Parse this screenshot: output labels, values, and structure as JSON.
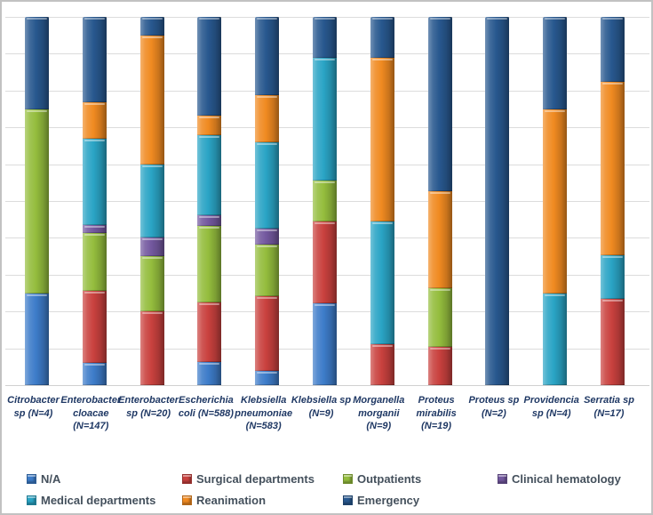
{
  "frame": {
    "border_color": "#C2C2C2",
    "background": "#FFFFFF"
  },
  "chart_data": {
    "type": "stacked-bar-100",
    "title": "",
    "xlabel": "",
    "ylabel": "",
    "ylim": [
      0,
      100
    ],
    "y_gridline_step_pct": 10,
    "y_axis_tick_labels_visible": false,
    "grid": "horizontal",
    "legend_position": "bottom",
    "gridline_color": "#DCDCDC",
    "axis_label_color": "#1F3864",
    "legend_text_color": "#44505C",
    "categories": [
      "Citrobacter sp (N=4)",
      "Enterobacter cloacae (N=147)",
      "Enterobacter sp (N=20)",
      "Escherichia coli (N=588)",
      "Klebsiella pneumoniae (N=583)",
      "Klebsiella sp (N=9)",
      "Morganella morganii (N=9)",
      "Proteus mirabilis (N=19)",
      "Proteus sp (N=2)",
      "Providencia sp (N=4)",
      "Serratia sp (N=17)"
    ],
    "series": [
      {
        "name": "N/A",
        "color": "#3D7CC9",
        "values": [
          25,
          6.1,
          0,
          6.3,
          3.9,
          22.2,
          0,
          0,
          0,
          0,
          0
        ]
      },
      {
        "name": "Surgical departments",
        "color": "#C9413E",
        "values": [
          0,
          19.6,
          20,
          16.2,
          20.3,
          22.2,
          11.1,
          10.5,
          0,
          0,
          23.5
        ]
      },
      {
        "name": "Outpatients",
        "color": "#94BD3D",
        "values": [
          50,
          15.5,
          15,
          20.8,
          14.0,
          11.1,
          0,
          15.8,
          0,
          0,
          0
        ]
      },
      {
        "name": "Clinical hematology",
        "color": "#73589F",
        "values": [
          0,
          2.4,
          5,
          2.9,
          4.3,
          0,
          0,
          0,
          0,
          0,
          0
        ]
      },
      {
        "name": "Medical departments",
        "color": "#2AA4C5",
        "values": [
          0,
          23.2,
          20,
          21.7,
          23.4,
          33.4,
          33.3,
          0,
          0,
          25,
          11.8
        ]
      },
      {
        "name": "Reanimation",
        "color": "#F08A21",
        "values": [
          0,
          10.1,
          35,
          5.3,
          12.8,
          0,
          44.5,
          26.3,
          0,
          50,
          47.1
        ]
      },
      {
        "name": "Emergency",
        "color": "#28588F",
        "values": [
          25,
          23.1,
          5,
          26.8,
          21.3,
          11.1,
          11.1,
          47.4,
          100,
          25,
          17.6
        ]
      }
    ]
  }
}
